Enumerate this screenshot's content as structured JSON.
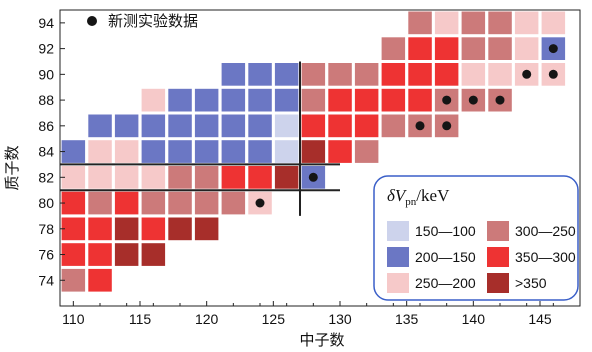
{
  "chart_data": {
    "type": "heatmap",
    "xlabel": "中子数",
    "ylabel": "质子数",
    "xlim": [
      109,
      148
    ],
    "ylim": [
      72,
      95
    ],
    "xticks": [
      110,
      115,
      120,
      125,
      130,
      135,
      140,
      145
    ],
    "yticks": [
      74,
      76,
      78,
      80,
      82,
      84,
      86,
      88,
      90,
      92,
      94
    ],
    "note_label": "新测实验数据",
    "legend": {
      "title_prefix": "δV",
      "title_subscript": "pn",
      "title_suffix": "/keV",
      "placement": "bottom-right",
      "entries": [
        {
          "label": "150—100",
          "color": "#cdd3ec"
        },
        {
          "label": "300—250",
          "color": "#cc7a7a"
        },
        {
          "label": "200—150",
          "color": "#6b77c4"
        },
        {
          "label": "350—300",
          "color": "#ee3333"
        },
        {
          "label": "250—200",
          "color": "#f6c9c9"
        },
        {
          "label": ">350",
          "color": "#a72e2a"
        }
      ]
    },
    "colors": {
      "A": "#cdd3ec",
      "B": "#6b77c4",
      "C": "#f6c9c9",
      "D": "#cc7a7a",
      "E": "#ee3333",
      "F": "#a72e2a"
    },
    "rows": [
      {
        "z": 94,
        "cells": "136D 138C 140D 142D 144C 146C"
      },
      {
        "z": 92,
        "cells": "134D 136E 138E 140D 142D 144C 146B"
      },
      {
        "z": 90,
        "cells": "122B 124B 126B 128D 130D 132D 134E 136E 138E 140C 142C 144C 146C"
      },
      {
        "z": 88,
        "cells": "116C 118B 120B 122B 124B 126B 128D 130E 132E 134E 136E 138D 140D 142D"
      },
      {
        "z": 86,
        "cells": "112B 114B 116B 118B 120B 122B 124B 126A 128E 130E 132E 134D 136D 138D"
      },
      {
        "z": 84,
        "cells": "110B 112C 114C 116B 118B 120B 122B 124B 126A 128F 130E 132D"
      },
      {
        "z": 82,
        "cells": "110C 112C 114C 116C 118D 120D 122E 124E 126F 128B"
      },
      {
        "z": 80,
        "cells": "110E 112D 114E 116D 118D 120D 122D 124C"
      },
      {
        "z": 78,
        "cells": "110E 112E 114F 116E 118F 120F"
      },
      {
        "z": 76,
        "cells": "110E 112E 114F 116F"
      },
      {
        "z": 74,
        "cells": "110D 112E"
      }
    ],
    "new_data": [
      {
        "n": 146,
        "z": 92
      },
      {
        "n": 144,
        "z": 90
      },
      {
        "n": 146,
        "z": 90
      },
      {
        "n": 138,
        "z": 88
      },
      {
        "n": 140,
        "z": 88
      },
      {
        "n": 142,
        "z": 88
      },
      {
        "n": 136,
        "z": 86
      },
      {
        "n": 138,
        "z": 86
      },
      {
        "n": 128,
        "z": 82
      },
      {
        "n": 124,
        "z": 80
      }
    ],
    "magic_lines": {
      "n": 126,
      "z": 82
    }
  }
}
